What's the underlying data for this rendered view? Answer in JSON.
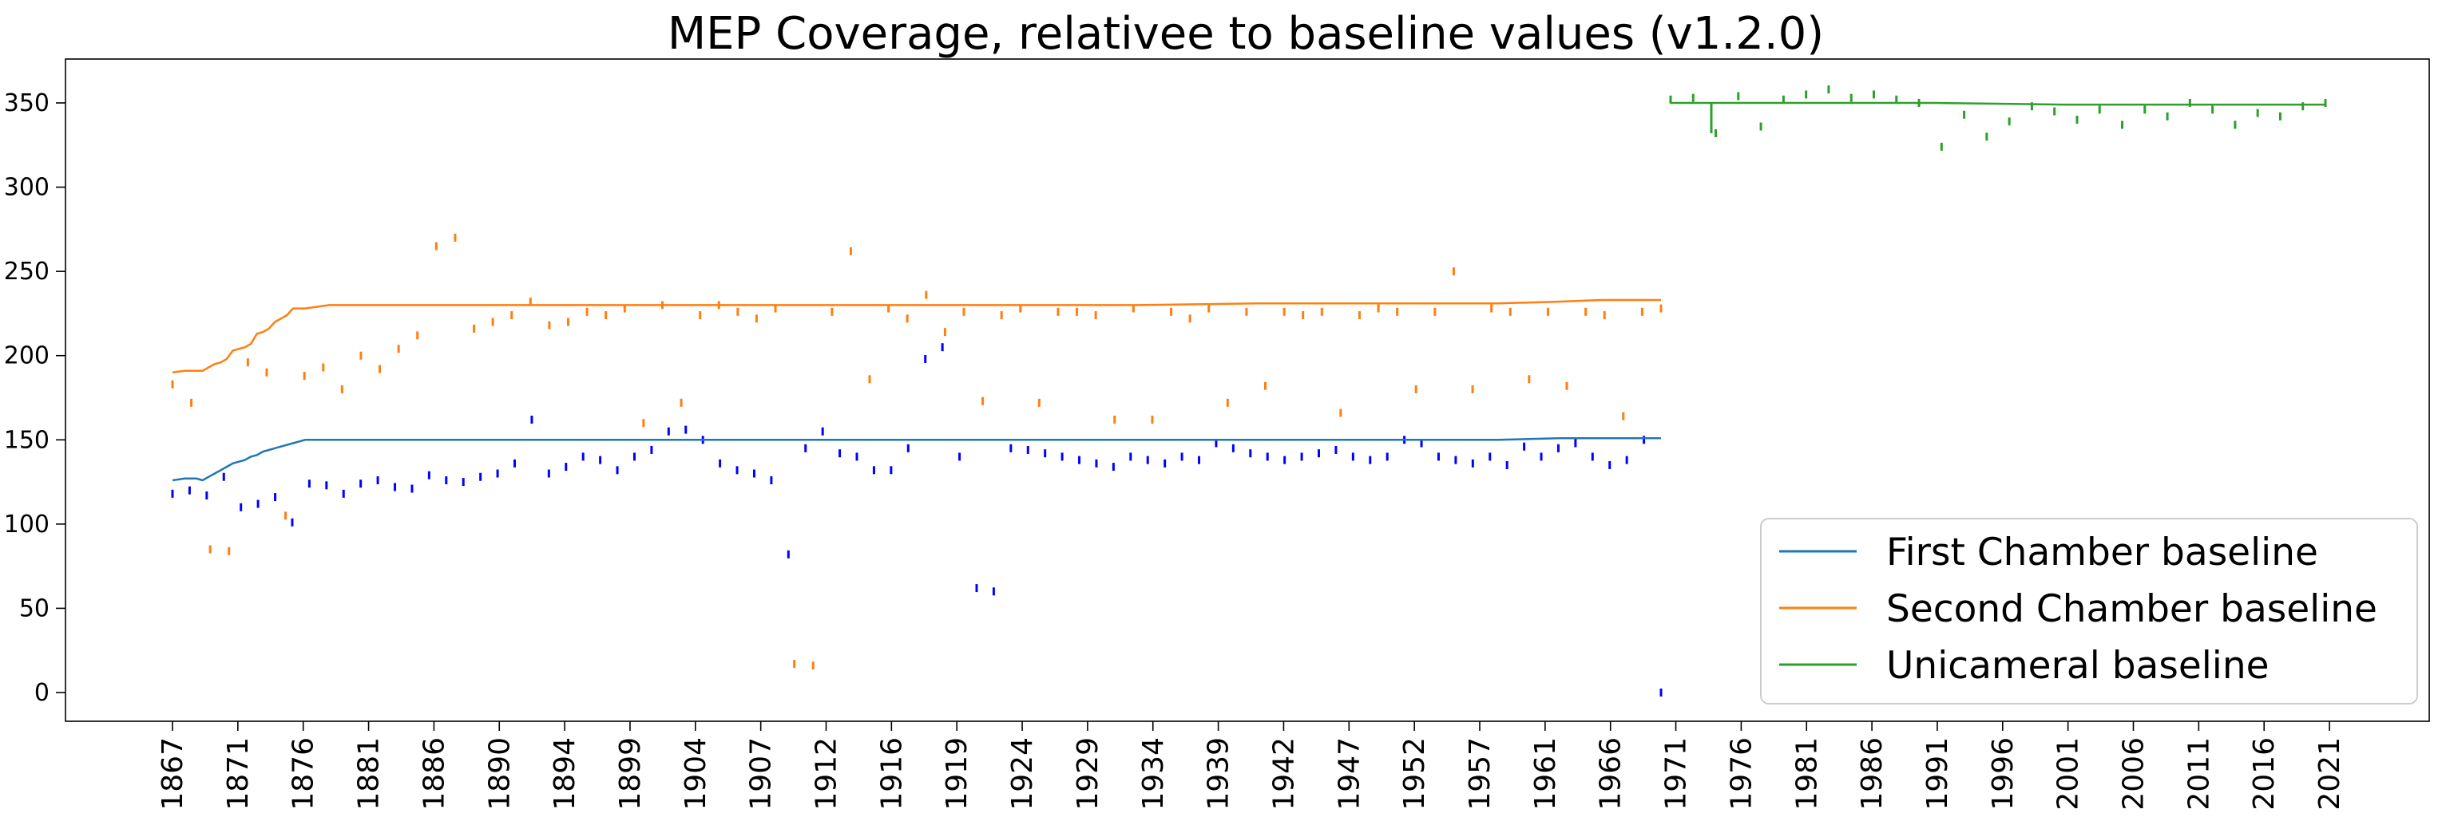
{
  "chart_data": {
    "type": "line",
    "title": "MEP Coverage, relativee to baseline values (v1.2.0)",
    "xlabel": "",
    "ylabel": "",
    "ylim": [
      -18,
      375
    ],
    "yticks": [
      0,
      50,
      100,
      150,
      200,
      250,
      300,
      350
    ],
    "xticks": [
      "1867",
      "1871",
      "1876",
      "1881",
      "1886",
      "1890",
      "1894",
      "1899",
      "1904",
      "1907",
      "1912",
      "1916",
      "1919",
      "1924",
      "1929",
      "1934",
      "1939",
      "1942",
      "1947",
      "1952",
      "1957",
      "1961",
      "1966",
      "1971",
      "1976",
      "1981",
      "1986",
      "1991",
      "1996",
      "2001",
      "2006",
      "2011",
      "2016",
      "2021"
    ],
    "grid": false,
    "legend": {
      "placement": "lower-right"
    },
    "series": [
      {
        "name": "First Chamber baseline",
        "color": "#1f77b4",
        "x": [
          0,
          2,
          4,
          5,
          6,
          7,
          8,
          9,
          10,
          11,
          12,
          13,
          14,
          15,
          16,
          17,
          18,
          19,
          20,
          21,
          22,
          23,
          24,
          25,
          26,
          27,
          30,
          40,
          60,
          80,
          100,
          120,
          140,
          160,
          180,
          200,
          220,
          230,
          237,
          240,
          247
        ],
        "values": [
          126,
          127,
          127,
          126,
          128,
          130,
          132,
          134,
          136,
          137,
          138,
          140,
          141,
          143,
          144,
          145,
          146,
          147,
          148,
          149,
          150,
          150,
          150,
          150,
          150,
          150,
          150,
          150,
          150,
          150,
          150,
          150,
          150,
          150,
          150,
          150,
          150,
          151,
          151,
          151,
          151
        ],
        "points": [
          [
            0,
            118
          ],
          [
            1,
            120
          ],
          [
            2,
            117
          ],
          [
            3,
            128
          ],
          [
            4,
            110
          ],
          [
            5,
            112
          ],
          [
            6,
            116
          ],
          [
            7,
            101
          ],
          [
            8,
            124
          ],
          [
            9,
            123
          ],
          [
            10,
            118
          ],
          [
            11,
            124
          ],
          [
            12,
            126
          ],
          [
            13,
            122
          ],
          [
            14,
            121
          ],
          [
            15,
            129
          ],
          [
            16,
            126
          ],
          [
            17,
            125
          ],
          [
            18,
            128
          ],
          [
            19,
            130
          ],
          [
            20,
            136
          ],
          [
            21,
            162
          ],
          [
            22,
            130
          ],
          [
            23,
            134
          ],
          [
            24,
            140
          ],
          [
            25,
            138
          ],
          [
            26,
            132
          ],
          [
            27,
            140
          ],
          [
            28,
            144
          ],
          [
            29,
            155
          ],
          [
            30,
            156
          ],
          [
            31,
            150
          ],
          [
            32,
            136
          ],
          [
            33,
            132
          ],
          [
            34,
            130
          ],
          [
            35,
            126
          ],
          [
            36,
            82
          ],
          [
            37,
            145
          ],
          [
            38,
            155
          ],
          [
            39,
            142
          ],
          [
            40,
            140
          ],
          [
            41,
            132
          ],
          [
            42,
            132
          ],
          [
            43,
            145
          ],
          [
            44,
            198
          ],
          [
            45,
            205
          ],
          [
            46,
            140
          ],
          [
            47,
            62
          ],
          [
            48,
            60
          ],
          [
            49,
            145
          ],
          [
            50,
            144
          ],
          [
            51,
            142
          ],
          [
            52,
            140
          ],
          [
            53,
            138
          ],
          [
            54,
            136
          ],
          [
            55,
            134
          ],
          [
            56,
            140
          ],
          [
            57,
            138
          ],
          [
            58,
            136
          ],
          [
            59,
            140
          ],
          [
            60,
            138
          ],
          [
            61,
            148
          ],
          [
            62,
            145
          ],
          [
            63,
            142
          ],
          [
            64,
            140
          ],
          [
            65,
            138
          ],
          [
            66,
            140
          ],
          [
            67,
            142
          ],
          [
            68,
            144
          ],
          [
            69,
            140
          ],
          [
            70,
            138
          ],
          [
            71,
            140
          ],
          [
            72,
            150
          ],
          [
            73,
            148
          ],
          [
            74,
            140
          ],
          [
            75,
            138
          ],
          [
            76,
            136
          ],
          [
            77,
            140
          ],
          [
            78,
            135
          ],
          [
            79,
            146
          ],
          [
            80,
            140
          ],
          [
            81,
            145
          ],
          [
            82,
            148
          ],
          [
            83,
            140
          ],
          [
            84,
            135
          ],
          [
            85,
            138
          ],
          [
            86,
            150
          ],
          [
            87,
            0
          ]
        ]
      },
      {
        "name": "Second Chamber baseline",
        "color": "#ff7f0e",
        "x": [
          0,
          2,
          4,
          5,
          6,
          7,
          8,
          9,
          10,
          11,
          12,
          13,
          14,
          15,
          16,
          17,
          18,
          19,
          20,
          22,
          24,
          26,
          28,
          30,
          40,
          60,
          80,
          100,
          120,
          140,
          160,
          180,
          200,
          220,
          230,
          237,
          240,
          247
        ],
        "values": [
          190,
          191,
          191,
          191,
          193,
          195,
          196,
          198,
          203,
          204,
          205,
          207,
          213,
          214,
          216,
          220,
          222,
          224,
          228,
          228,
          229,
          230,
          230,
          230,
          230,
          230,
          230,
          230,
          230,
          230,
          230,
          231,
          231,
          231,
          232,
          233,
          233,
          233
        ],
        "points": [
          [
            0,
            183
          ],
          [
            1,
            172
          ],
          [
            2,
            85
          ],
          [
            3,
            84
          ],
          [
            4,
            196
          ],
          [
            5,
            190
          ],
          [
            6,
            105
          ],
          [
            7,
            188
          ],
          [
            8,
            193
          ],
          [
            9,
            180
          ],
          [
            10,
            200
          ],
          [
            11,
            192
          ],
          [
            12,
            204
          ],
          [
            13,
            212
          ],
          [
            14,
            265
          ],
          [
            15,
            270
          ],
          [
            16,
            216
          ],
          [
            17,
            220
          ],
          [
            18,
            224
          ],
          [
            19,
            232
          ],
          [
            20,
            218
          ],
          [
            21,
            220
          ],
          [
            22,
            226
          ],
          [
            23,
            224
          ],
          [
            24,
            228
          ],
          [
            25,
            160
          ],
          [
            26,
            230
          ],
          [
            27,
            172
          ],
          [
            28,
            224
          ],
          [
            29,
            230
          ],
          [
            30,
            226
          ],
          [
            31,
            222
          ],
          [
            32,
            228
          ],
          [
            33,
            17
          ],
          [
            34,
            16
          ],
          [
            35,
            226
          ],
          [
            36,
            262
          ],
          [
            37,
            186
          ],
          [
            38,
            228
          ],
          [
            39,
            222
          ],
          [
            40,
            236
          ],
          [
            41,
            214
          ],
          [
            42,
            226
          ],
          [
            43,
            173
          ],
          [
            44,
            224
          ],
          [
            45,
            228
          ],
          [
            46,
            172
          ],
          [
            47,
            226
          ],
          [
            48,
            226
          ],
          [
            49,
            224
          ],
          [
            50,
            162
          ],
          [
            51,
            228
          ],
          [
            52,
            162
          ],
          [
            53,
            226
          ],
          [
            54,
            222
          ],
          [
            55,
            228
          ],
          [
            56,
            172
          ],
          [
            57,
            226
          ],
          [
            58,
            182
          ],
          [
            59,
            226
          ],
          [
            60,
            224
          ],
          [
            61,
            226
          ],
          [
            62,
            166
          ],
          [
            63,
            224
          ],
          [
            64,
            228
          ],
          [
            65,
            226
          ],
          [
            66,
            180
          ],
          [
            67,
            226
          ],
          [
            68,
            250
          ],
          [
            69,
            180
          ],
          [
            70,
            228
          ],
          [
            71,
            226
          ],
          [
            72,
            186
          ],
          [
            73,
            226
          ],
          [
            74,
            182
          ],
          [
            75,
            226
          ],
          [
            76,
            224
          ],
          [
            77,
            164
          ],
          [
            78,
            226
          ],
          [
            79,
            228
          ]
        ]
      },
      {
        "name": "Unicameral baseline",
        "color": "#2ca02c",
        "x": [
          0,
          10,
          20,
          30,
          40,
          50
        ],
        "values": [
          350,
          350,
          350,
          349,
          349,
          349
        ],
        "points": [
          [
            0,
            352
          ],
          [
            1,
            353
          ],
          [
            2,
            332
          ],
          [
            3,
            354
          ],
          [
            4,
            336
          ],
          [
            5,
            352
          ],
          [
            6,
            355
          ],
          [
            7,
            358
          ],
          [
            8,
            353
          ],
          [
            9,
            355
          ],
          [
            10,
            352
          ],
          [
            11,
            350
          ],
          [
            12,
            324
          ],
          [
            13,
            343
          ],
          [
            14,
            330
          ],
          [
            15,
            339
          ],
          [
            16,
            348
          ],
          [
            17,
            345
          ],
          [
            18,
            340
          ],
          [
            19,
            346
          ],
          [
            20,
            337
          ],
          [
            21,
            346
          ],
          [
            22,
            342
          ],
          [
            23,
            350
          ],
          [
            24,
            346
          ],
          [
            25,
            337
          ],
          [
            26,
            344
          ],
          [
            27,
            342
          ],
          [
            28,
            348
          ],
          [
            29,
            350
          ]
        ]
      }
    ]
  }
}
